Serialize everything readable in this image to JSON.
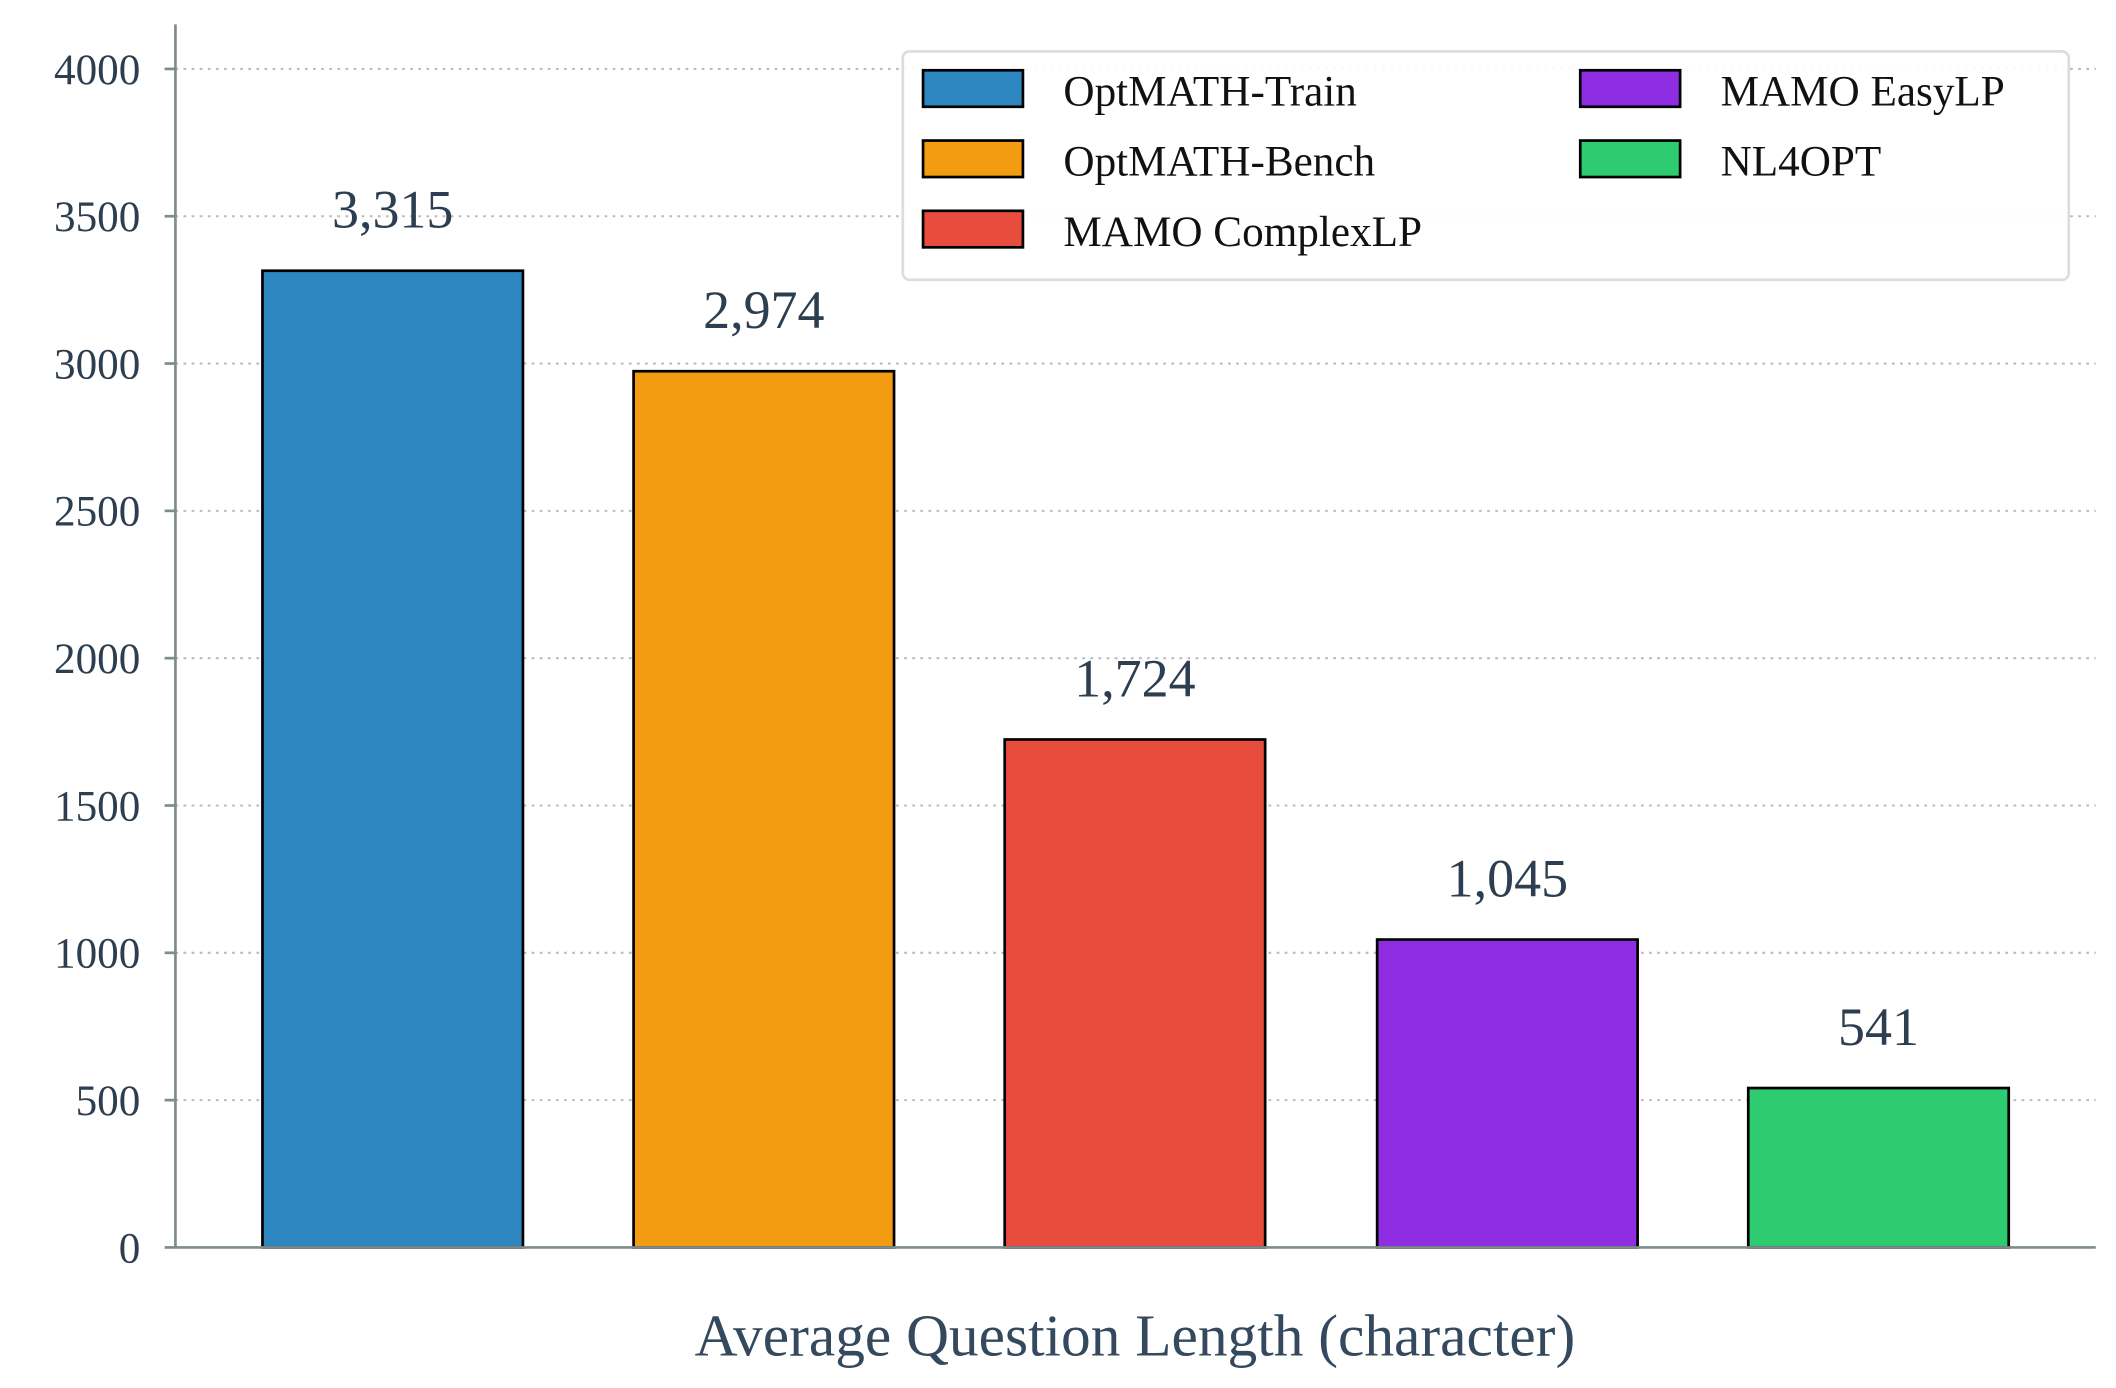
{
  "chart_data": {
    "type": "bar",
    "title": "",
    "xlabel": "Average Question Length (character)",
    "ylabel": "",
    "ylim": [
      0,
      4150
    ],
    "yticks": [
      0,
      500,
      1000,
      1500,
      2000,
      2500,
      3000,
      3500,
      4000
    ],
    "grid": "horizontal dotted",
    "legend_placement": "top-right",
    "categories": [
      "OptMATH-Train",
      "OptMATH-Bench",
      "MAMO ComplexLP",
      "MAMO EasyLP",
      "NL4OPT"
    ],
    "values": [
      3315,
      2974,
      1724,
      1045,
      541
    ],
    "value_labels": [
      "3,315",
      "2,974",
      "1,724",
      "1,045",
      "541"
    ],
    "colors": [
      "#2e86c1",
      "#f39c12",
      "#e74c3c",
      "#8e2de2",
      "#2ecc71"
    ],
    "legend": [
      "OptMATH-Train",
      "OptMATH-Bench",
      "MAMO ComplexLP",
      "MAMO EasyLP",
      "NL4OPT"
    ]
  }
}
